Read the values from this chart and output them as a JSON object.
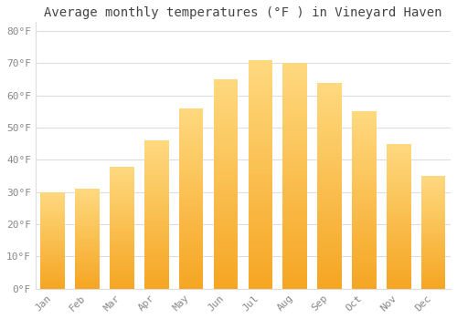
{
  "title": "Average monthly temperatures (°F ) in Vineyard Haven",
  "months": [
    "Jan",
    "Feb",
    "Mar",
    "Apr",
    "May",
    "Jun",
    "Jul",
    "Aug",
    "Sep",
    "Oct",
    "Nov",
    "Dec"
  ],
  "values": [
    30,
    31,
    38,
    46,
    56,
    65,
    71,
    70,
    64,
    55,
    45,
    35
  ],
  "bar_color_bottom": "#F5A623",
  "bar_color_top": "#FFD980",
  "background_color": "#FFFFFF",
  "grid_color": "#DDDDDD",
  "text_color": "#888888",
  "title_color": "#444444",
  "ylim": [
    0,
    83
  ],
  "yticks": [
    0,
    10,
    20,
    30,
    40,
    50,
    60,
    70,
    80
  ],
  "ytick_labels": [
    "0°F",
    "10°F",
    "20°F",
    "30°F",
    "40°F",
    "50°F",
    "60°F",
    "70°F",
    "80°F"
  ],
  "title_fontsize": 10,
  "tick_fontsize": 8,
  "font_family": "monospace",
  "bar_width": 0.7
}
